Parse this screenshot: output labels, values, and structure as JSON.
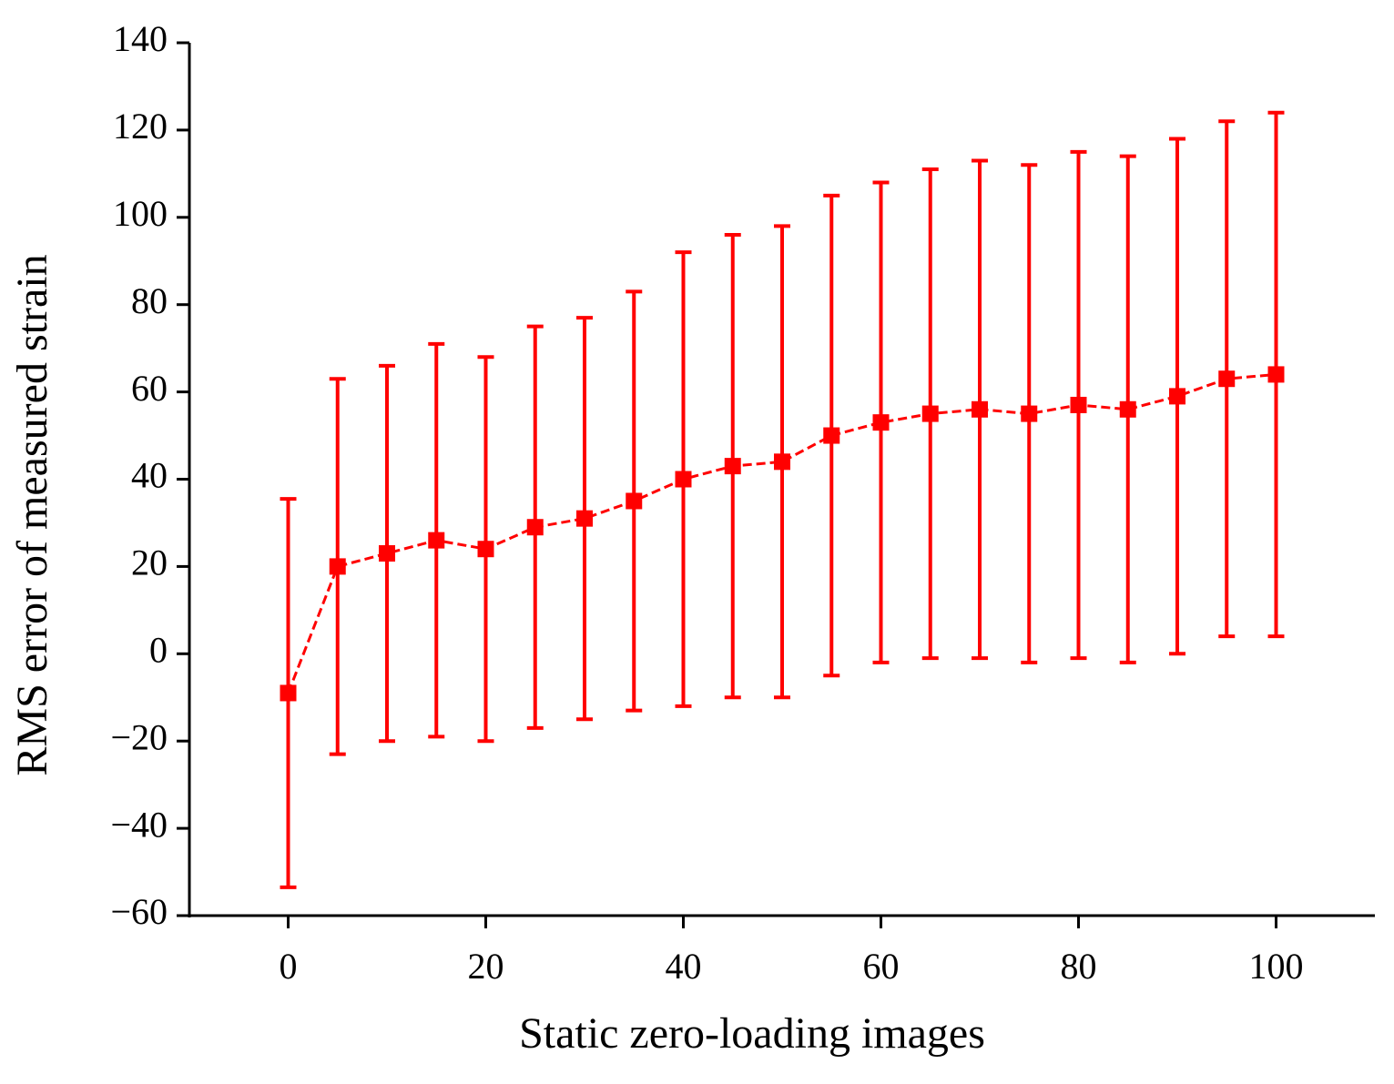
{
  "chart_data": {
    "type": "errorbar-line",
    "xlabel": "Static zero-loading images",
    "ylabel": "RMS error of measured strain",
    "x": [
      0,
      5,
      10,
      15,
      20,
      25,
      30,
      35,
      40,
      45,
      50,
      55,
      60,
      65,
      70,
      75,
      80,
      85,
      90,
      95,
      100
    ],
    "series": [
      {
        "color": "#ff0000",
        "values": [
          -9,
          20,
          23,
          26,
          24,
          29,
          31,
          35,
          40,
          43,
          44,
          50,
          53,
          55,
          56,
          55,
          57,
          56,
          59,
          63,
          64
        ],
        "errors": [
          44.5,
          43,
          43,
          45,
          44,
          46,
          46,
          48,
          52,
          53,
          54,
          55,
          55,
          56,
          57,
          57,
          58,
          58,
          59,
          59,
          60
        ]
      }
    ],
    "xlim": [
      -10,
      110
    ],
    "ylim": [
      -60,
      140
    ],
    "xticks": [
      0,
      20,
      40,
      60,
      80,
      100
    ],
    "yticks": [
      {
        "value": -60,
        "label": "−60"
      },
      {
        "value": -40,
        "label": "−40"
      },
      {
        "value": -20,
        "label": "−20"
      },
      0,
      20,
      40,
      60,
      80,
      100,
      120,
      140
    ]
  }
}
